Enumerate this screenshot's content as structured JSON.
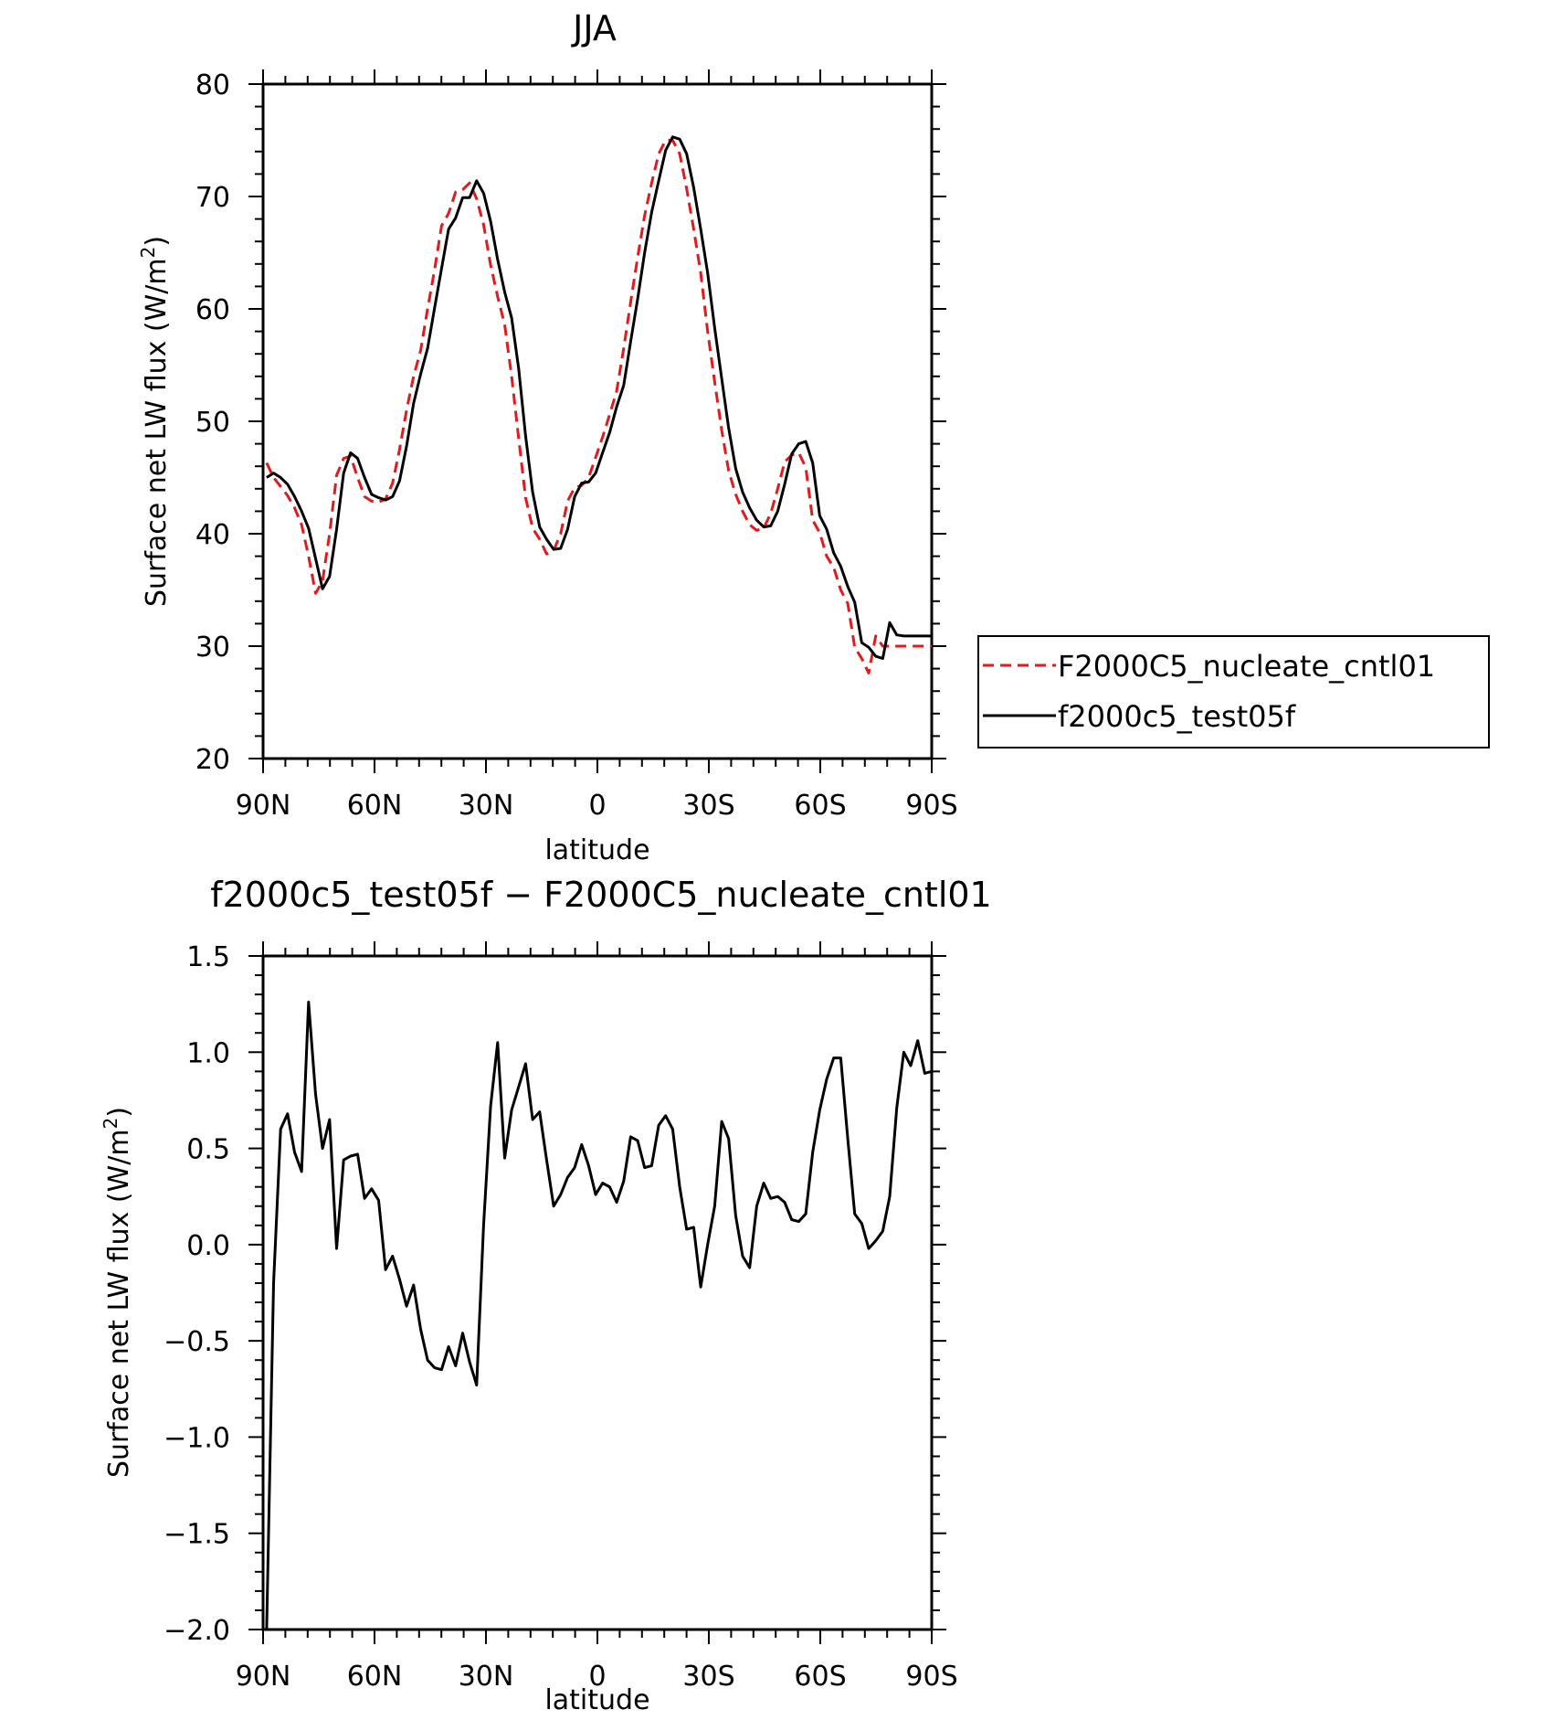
{
  "chart_data": [
    {
      "type": "line",
      "title": "JJA",
      "xlabel": "latitude",
      "ylabel": "Surface net LW flux (W/m²)",
      "ylabel_base": "Surface net LW flux (W/m",
      "ylabel_sup": "2",
      "ylabel_tail": ")",
      "xlim": [
        90,
        -90
      ],
      "ylim": [
        20,
        80
      ],
      "xticks": [
        90,
        60,
        30,
        0,
        -30,
        -60,
        -90
      ],
      "xtick_labels": [
        "90N",
        "60N",
        "30N",
        "0",
        "30S",
        "60S",
        "90S"
      ],
      "yticks": [
        20,
        30,
        40,
        50,
        60,
        70,
        80
      ],
      "ytick_labels": [
        "20",
        "30",
        "40",
        "50",
        "60",
        "70",
        "80"
      ],
      "legend_position": "right-middle",
      "series": [
        {
          "name": "F2000C5_nucleate_cntl01",
          "color": "#e31a1c",
          "dash": "dashed",
          "x": [
            89.05,
            87.17,
            85.29,
            83.4,
            81.52,
            79.63,
            77.75,
            75.86,
            73.98,
            72.09,
            70.21,
            68.32,
            66.44,
            64.55,
            62.67,
            60.79,
            58.9,
            57.02,
            55.13,
            53.25,
            51.36,
            49.48,
            47.59,
            45.71,
            43.82,
            41.94,
            40.05,
            38.17,
            36.28,
            34.4,
            32.51,
            30.63,
            28.74,
            26.86,
            24.97,
            23.09,
            21.2,
            19.32,
            17.43,
            15.55,
            13.66,
            11.78,
            9.89,
            8.01,
            6.12,
            4.24,
            2.35,
            0.47,
            -1.41,
            -3.3,
            -5.18,
            -7.07,
            -8.95,
            -10.84,
            -12.72,
            -14.61,
            -16.49,
            -18.38,
            -20.26,
            -22.15,
            -24.03,
            -25.92,
            -27.8,
            -29.69,
            -31.57,
            -33.46,
            -35.34,
            -37.23,
            -39.11,
            -41.0,
            -42.88,
            -44.77,
            -46.65,
            -48.54,
            -50.42,
            -52.31,
            -54.19,
            -56.08,
            -57.96,
            -59.85,
            -61.73,
            -63.62,
            -65.5,
            -67.39,
            -69.27,
            -71.16,
            -73.04,
            -74.93,
            -76.81,
            -78.7,
            -80.58,
            -82.47,
            -84.35,
            -86.24,
            -88.12,
            -90.0
          ],
          "y": [
            46.3,
            45.0,
            44.2,
            43.4,
            42.3,
            40.8,
            38.0,
            34.7,
            35.8,
            40.0,
            45.2,
            46.7,
            46.9,
            45.0,
            43.3,
            42.9,
            42.8,
            43.1,
            44.5,
            47.5,
            51.0,
            54.0,
            56.3,
            60.0,
            63.5,
            67.4,
            68.5,
            70.4,
            70.6,
            71.2,
            69.8,
            67.5,
            63.9,
            61.1,
            58.6,
            54.0,
            48.5,
            43.2,
            40.5,
            39.5,
            38.2,
            38.5,
            40.0,
            42.9,
            44.1,
            44.3,
            45.0,
            46.8,
            48.6,
            50.6,
            52.7,
            56.5,
            60.6,
            64.6,
            68.3,
            71.2,
            73.8,
            75.0,
            75.0,
            73.8,
            70.7,
            67.1,
            63.2,
            58.0,
            53.5,
            49.2,
            45.6,
            43.5,
            42.0,
            40.8,
            40.3,
            40.5,
            41.8,
            44.0,
            46.4,
            47.0,
            47.2,
            45.9,
            41.2,
            40.1,
            38.0,
            37.0,
            35.0,
            33.8,
            29.9,
            28.9,
            27.6,
            30.9,
            30.0,
            30.0,
            30.0,
            30.0,
            30.0,
            30.0,
            30.0,
            30.0
          ]
        },
        {
          "name": "f2000c5_test05f",
          "color": "#000000",
          "dash": "solid",
          "x": [
            89.05,
            87.17,
            85.29,
            83.4,
            81.52,
            79.63,
            77.75,
            75.86,
            73.98,
            72.09,
            70.21,
            68.32,
            66.44,
            64.55,
            62.67,
            60.79,
            58.9,
            57.02,
            55.13,
            53.25,
            51.36,
            49.48,
            47.59,
            45.71,
            43.82,
            41.94,
            40.05,
            38.17,
            36.28,
            34.4,
            32.51,
            30.63,
            28.74,
            26.86,
            24.97,
            23.09,
            21.2,
            19.32,
            17.43,
            15.55,
            13.66,
            11.78,
            9.89,
            8.01,
            6.12,
            4.24,
            2.35,
            0.47,
            -1.41,
            -3.3,
            -5.18,
            -7.07,
            -8.95,
            -10.84,
            -12.72,
            -14.61,
            -16.49,
            -18.38,
            -20.26,
            -22.15,
            -24.03,
            -25.92,
            -27.8,
            -29.69,
            -31.57,
            -33.46,
            -35.34,
            -37.23,
            -39.11,
            -41.0,
            -42.88,
            -44.77,
            -46.65,
            -48.54,
            -50.42,
            -52.31,
            -54.19,
            -56.08,
            -57.96,
            -59.85,
            -61.73,
            -63.62,
            -65.5,
            -67.39,
            -69.27,
            -71.16,
            -73.04,
            -74.93,
            -76.81,
            -78.7,
            -80.58,
            -82.47,
            -84.35,
            -86.24,
            -88.12,
            -90.0
          ],
          "y": [
            45.0,
            45.4,
            45.0,
            44.4,
            43.3,
            42.0,
            40.5,
            37.8,
            35.1,
            36.2,
            40.4,
            45.4,
            47.2,
            46.7,
            45.0,
            43.5,
            43.2,
            43.0,
            43.3,
            44.7,
            47.8,
            51.6,
            54.2,
            56.5,
            60.1,
            63.6,
            67.1,
            68.1,
            69.9,
            69.9,
            71.4,
            70.3,
            67.8,
            64.4,
            61.5,
            59.2,
            54.7,
            48.7,
            43.7,
            40.6,
            39.5,
            38.6,
            38.7,
            40.4,
            43.3,
            44.5,
            44.6,
            45.4,
            47.2,
            49.0,
            51.3,
            53.2,
            57.1,
            60.9,
            65.0,
            68.6,
            71.4,
            74.1,
            75.3,
            75.1,
            73.8,
            70.8,
            67.1,
            63.2,
            58.3,
            53.8,
            49.4,
            45.8,
            43.7,
            42.3,
            41.2,
            40.6,
            40.7,
            42.0,
            44.4,
            47.1,
            48.0,
            48.2,
            46.3,
            41.6,
            40.4,
            38.3,
            37.1,
            35.3,
            33.9,
            30.3,
            29.9,
            29.1,
            28.9,
            32.1,
            31.0,
            30.9,
            30.9,
            30.9,
            30.9,
            30.9
          ]
        }
      ]
    },
    {
      "type": "line",
      "title": "f2000c5_test05f − F2000C5_nucleate_cntl01",
      "xlabel": "latitude",
      "ylabel": "Surface net LW flux (W/m²)",
      "ylabel_base": "Surface net LW flux (W/m",
      "ylabel_sup": "2",
      "ylabel_tail": ")",
      "xlim": [
        90,
        -90
      ],
      "ylim": [
        -2.0,
        1.5
      ],
      "xticks": [
        90,
        60,
        30,
        0,
        -30,
        -60,
        -90
      ],
      "xtick_labels": [
        "90N",
        "60N",
        "30N",
        "0",
        "30S",
        "60S",
        "90S"
      ],
      "yticks": [
        -2.0,
        -1.5,
        -1.0,
        -0.5,
        0.0,
        0.5,
        1.0,
        1.5
      ],
      "ytick_labels": [
        "−2.0",
        "−1.5",
        "−1.0",
        "−0.5",
        "0.0",
        "0.5",
        "1.0",
        "1.5"
      ],
      "series": [
        {
          "name": "",
          "color": "#000000",
          "dash": "solid",
          "x": [
            89.05,
            87.17,
            85.29,
            83.4,
            81.52,
            79.63,
            77.75,
            75.86,
            73.98,
            72.09,
            70.21,
            68.32,
            66.44,
            64.55,
            62.67,
            60.79,
            58.9,
            57.02,
            55.13,
            53.25,
            51.36,
            49.48,
            47.59,
            45.71,
            43.82,
            41.94,
            40.05,
            38.17,
            36.28,
            34.4,
            32.51,
            30.63,
            28.74,
            26.86,
            24.97,
            23.09,
            21.2,
            19.32,
            17.43,
            15.55,
            13.66,
            11.78,
            9.89,
            8.01,
            6.12,
            4.24,
            2.35,
            0.47,
            -1.41,
            -3.3,
            -5.18,
            -7.07,
            -8.95,
            -10.84,
            -12.72,
            -14.61,
            -16.49,
            -18.38,
            -20.26,
            -22.15,
            -24.03,
            -25.92,
            -27.8,
            -29.69,
            -31.57,
            -33.46,
            -35.34,
            -37.23,
            -39.11,
            -41.0,
            -42.88,
            -44.77,
            -46.65,
            -48.54,
            -50.42,
            -52.31,
            -54.19,
            -56.08,
            -57.96,
            -59.85,
            -61.73,
            -63.62,
            -65.5,
            -67.39,
            -69.27,
            -71.16,
            -73.04,
            -74.93,
            -76.81,
            -78.7,
            -80.58,
            -82.47,
            -84.35,
            -86.24,
            -88.12,
            -90.0
          ],
          "y": [
            -2.0,
            -0.2,
            0.6,
            0.68,
            0.48,
            0.38,
            1.26,
            0.78,
            0.5,
            0.65,
            -0.02,
            0.44,
            0.46,
            0.47,
            0.24,
            0.29,
            0.23,
            -0.13,
            -0.06,
            -0.18,
            -0.32,
            -0.21,
            -0.44,
            -0.6,
            -0.64,
            -0.65,
            -0.53,
            -0.63,
            -0.46,
            -0.61,
            -0.73,
            0.1,
            0.72,
            1.05,
            0.45,
            0.7,
            0.82,
            0.94,
            0.65,
            0.69,
            0.44,
            0.2,
            0.26,
            0.35,
            0.4,
            0.52,
            0.41,
            0.26,
            0.32,
            0.3,
            0.22,
            0.33,
            0.56,
            0.54,
            0.4,
            0.41,
            0.62,
            0.67,
            0.6,
            0.3,
            0.08,
            0.09,
            -0.22,
            0.0,
            0.2,
            0.64,
            0.55,
            0.15,
            -0.06,
            -0.12,
            0.2,
            0.32,
            0.24,
            0.25,
            0.22,
            0.13,
            0.12,
            0.16,
            0.48,
            0.7,
            0.86,
            0.97,
            0.97,
            0.55,
            0.16,
            0.11,
            -0.02,
            0.02,
            0.07,
            0.25,
            0.71,
            1.0,
            0.93,
            1.06,
            0.89,
            0.9
          ]
        }
      ]
    }
  ]
}
